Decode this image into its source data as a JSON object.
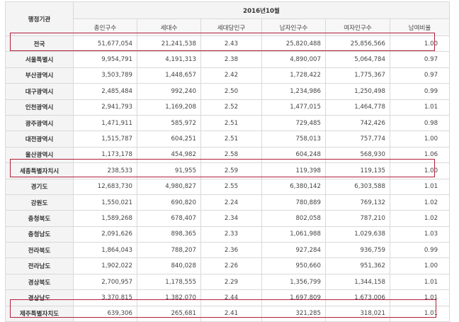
{
  "table": {
    "agency_header": "행정기관",
    "period": "2016년10월",
    "columns": [
      "총인구수",
      "세대수",
      "세대당인구",
      "남자인구수",
      "여자인구수",
      "남여비율"
    ],
    "rows": [
      {
        "region": "전국",
        "total": "51,677,054",
        "households": "21,241,538",
        "per_household": "2.43",
        "male": "25,820,488",
        "female": "25,856,566",
        "ratio": "1.00"
      },
      {
        "region": "서울특별시",
        "total": "9,954,791",
        "households": "4,191,313",
        "per_household": "2.38",
        "male": "4,890,007",
        "female": "5,064,784",
        "ratio": "0.97"
      },
      {
        "region": "부산광역시",
        "total": "3,503,789",
        "households": "1,448,657",
        "per_household": "2.42",
        "male": "1,728,422",
        "female": "1,775,367",
        "ratio": "0.97"
      },
      {
        "region": "대구광역시",
        "total": "2,485,484",
        "households": "992,240",
        "per_household": "2.50",
        "male": "1,234,986",
        "female": "1,250,498",
        "ratio": "0.99"
      },
      {
        "region": "인천광역시",
        "total": "2,941,793",
        "households": "1,169,208",
        "per_household": "2.52",
        "male": "1,477,015",
        "female": "1,464,778",
        "ratio": "1.01"
      },
      {
        "region": "광주광역시",
        "total": "1,471,911",
        "households": "585,972",
        "per_household": "2.51",
        "male": "729,485",
        "female": "742,426",
        "ratio": "0.98"
      },
      {
        "region": "대전광역시",
        "total": "1,515,787",
        "households": "604,251",
        "per_household": "2.51",
        "male": "758,013",
        "female": "757,774",
        "ratio": "1.00"
      },
      {
        "region": "울산광역시",
        "total": "1,173,178",
        "households": "454,982",
        "per_household": "2.58",
        "male": "604,248",
        "female": "568,930",
        "ratio": "1.06"
      },
      {
        "region": "세종특별자치시",
        "total": "238,533",
        "households": "91,955",
        "per_household": "2.59",
        "male": "119,398",
        "female": "119,135",
        "ratio": "1.00"
      },
      {
        "region": "경기도",
        "total": "12,683,730",
        "households": "4,980,827",
        "per_household": "2.55",
        "male": "6,380,142",
        "female": "6,303,588",
        "ratio": "1.01"
      },
      {
        "region": "강원도",
        "total": "1,550,021",
        "households": "690,820",
        "per_household": "2.24",
        "male": "780,889",
        "female": "769,132",
        "ratio": "1.02"
      },
      {
        "region": "충청북도",
        "total": "1,589,268",
        "households": "678,407",
        "per_household": "2.34",
        "male": "802,058",
        "female": "787,210",
        "ratio": "1.02"
      },
      {
        "region": "충청남도",
        "total": "2,091,626",
        "households": "898,365",
        "per_household": "2.33",
        "male": "1,061,988",
        "female": "1,029,638",
        "ratio": "1.03"
      },
      {
        "region": "전라북도",
        "total": "1,864,043",
        "households": "788,207",
        "per_household": "2.36",
        "male": "927,284",
        "female": "936,759",
        "ratio": "0.99"
      },
      {
        "region": "전라남도",
        "total": "1,902,022",
        "households": "840,028",
        "per_household": "2.26",
        "male": "950,660",
        "female": "951,362",
        "ratio": "1.00"
      },
      {
        "region": "경상북도",
        "total": "2,700,957",
        "households": "1,178,555",
        "per_household": "2.29",
        "male": "1,356,799",
        "female": "1,344,158",
        "ratio": "1.01"
      },
      {
        "region": "경상남도",
        "total": "3,370,815",
        "households": "1,382,070",
        "per_household": "2.44",
        "male": "1,697,809",
        "female": "1,673,006",
        "ratio": "1.01"
      },
      {
        "region": "제주특별자치도",
        "total": "639,306",
        "households": "265,681",
        "per_household": "2.41",
        "male": "321,285",
        "female": "318,021",
        "ratio": "1.01"
      }
    ]
  },
  "highlight_color": "#b0203a"
}
